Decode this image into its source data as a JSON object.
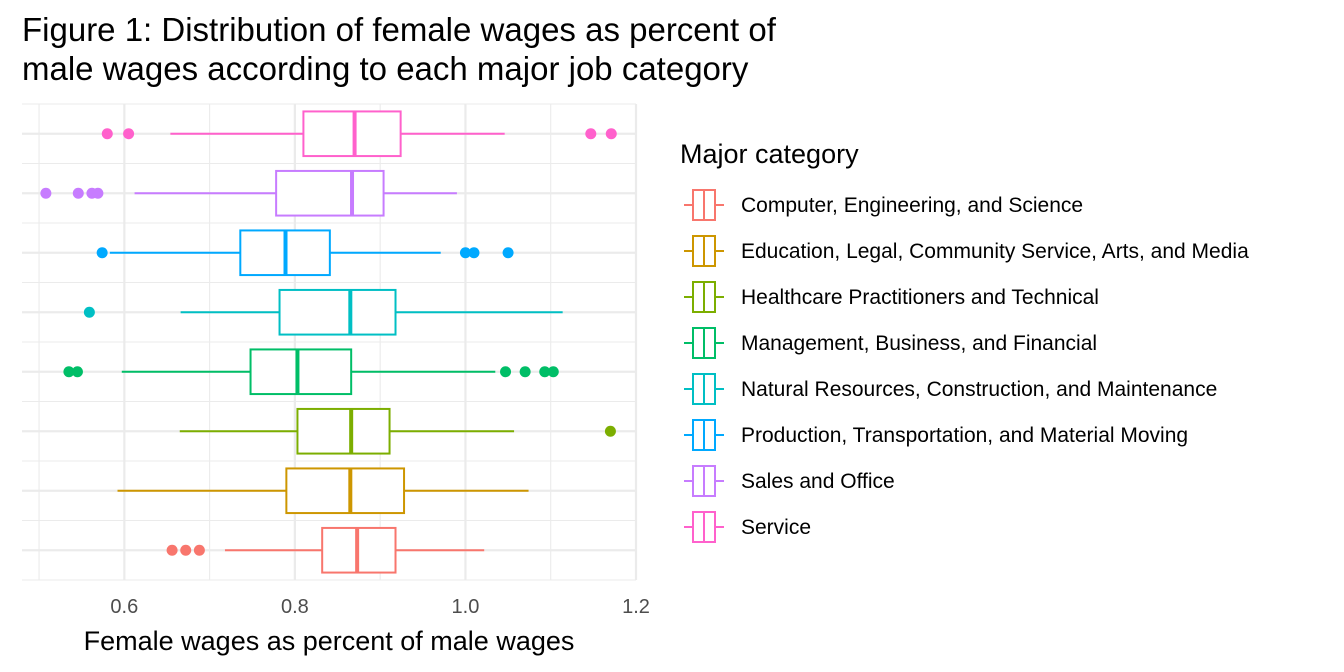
{
  "chart_data": {
    "type": "boxplot",
    "title_line1": "Figure 1: Distribution of female wages as percent of",
    "title_line2": "male wages according to each major job category",
    "xlabel": "Female wages as percent of male wages",
    "ylabel": "",
    "xlim": [
      0.48,
      1.2
    ],
    "x_ticks": [
      0.6,
      0.8,
      1.0,
      1.2
    ],
    "x_tick_labels": [
      "0.6",
      "0.8",
      "1.0",
      "1.2"
    ],
    "grid": true,
    "legend_title": "Major category",
    "legend_position": "right",
    "series": [
      {
        "name": "Computer, Engineering, and Science",
        "color": "#F8766D",
        "whisker_low": 0.718,
        "q1": 0.832,
        "median": 0.873,
        "q3": 0.918,
        "whisker_high": 1.022,
        "outliers": [
          0.656,
          0.672,
          0.688
        ]
      },
      {
        "name": "Education, Legal, Community Service, Arts, and Media",
        "color": "#CD9600",
        "whisker_low": 0.592,
        "q1": 0.79,
        "median": 0.865,
        "q3": 0.928,
        "whisker_high": 1.074,
        "outliers": []
      },
      {
        "name": "Healthcare Practitioners and Technical",
        "color": "#7CAE00",
        "whisker_low": 0.665,
        "q1": 0.803,
        "median": 0.866,
        "q3": 0.911,
        "whisker_high": 1.057,
        "outliers": [
          1.17
        ]
      },
      {
        "name": "Management, Business, and Financial",
        "color": "#00BE67",
        "whisker_low": 0.597,
        "q1": 0.748,
        "median": 0.803,
        "q3": 0.866,
        "whisker_high": 1.035,
        "outliers": [
          0.535,
          0.545,
          1.047,
          1.07,
          1.093,
          1.103
        ]
      },
      {
        "name": "Natural Resources, Construction, and Maintenance",
        "color": "#00BFC4",
        "whisker_low": 0.666,
        "q1": 0.782,
        "median": 0.865,
        "q3": 0.918,
        "whisker_high": 1.114,
        "outliers": [
          0.559
        ]
      },
      {
        "name": "Production, Transportation, and Material Moving",
        "color": "#00A9FF",
        "whisker_low": 0.583,
        "q1": 0.736,
        "median": 0.789,
        "q3": 0.841,
        "whisker_high": 0.971,
        "outliers": [
          0.574,
          1.0,
          1.01,
          1.05
        ]
      },
      {
        "name": "Sales and Office",
        "color": "#C77CFF",
        "whisker_low": 0.612,
        "q1": 0.778,
        "median": 0.867,
        "q3": 0.904,
        "whisker_high": 0.99,
        "outliers": [
          0.508,
          0.546,
          0.562,
          0.569
        ]
      },
      {
        "name": "Service",
        "color": "#FF61CC",
        "whisker_low": 0.654,
        "q1": 0.81,
        "median": 0.87,
        "q3": 0.924,
        "whisker_high": 1.046,
        "outliers": [
          0.58,
          0.605,
          1.147,
          1.171
        ]
      }
    ]
  }
}
